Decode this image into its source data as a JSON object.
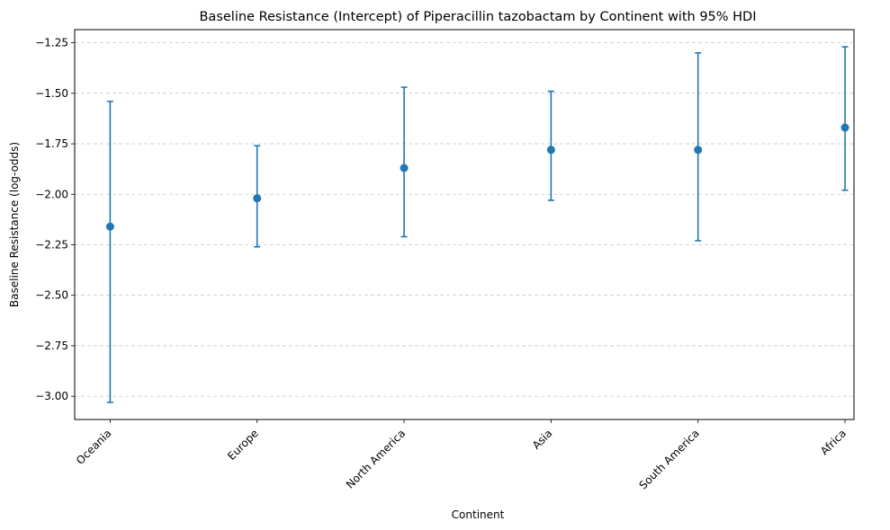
{
  "chart_data": {
    "type": "scatter",
    "subtype": "errorbar",
    "title": "Baseline Resistance (Intercept) of Piperacillin tazobactam by Continent with 95% HDI",
    "xlabel": "Continent",
    "ylabel": "Baseline Resistance (log-odds)",
    "categories": [
      "Oceania",
      "Europe",
      "North America",
      "Asia",
      "South America",
      "Africa"
    ],
    "values": [
      -2.16,
      -2.02,
      -1.87,
      -1.78,
      -1.78,
      -1.67
    ],
    "hdi_lower": [
      -3.03,
      -2.26,
      -2.21,
      -2.03,
      -2.23,
      -1.98
    ],
    "hdi_upper": [
      -1.54,
      -1.76,
      -1.47,
      -1.49,
      -1.3,
      -1.27
    ],
    "ylim": [
      -3.115,
      -1.185
    ],
    "yticks": [
      -3.0,
      -2.75,
      -2.5,
      -2.25,
      -2.0,
      -1.75,
      -1.5,
      -1.25
    ],
    "ytick_labels": [
      "−3.00",
      "−2.75",
      "−2.50",
      "−2.25",
      "−2.00",
      "−1.75",
      "−1.50",
      "−1.25"
    ],
    "grid": "horizontal dashed",
    "color": "#1f77b4"
  }
}
